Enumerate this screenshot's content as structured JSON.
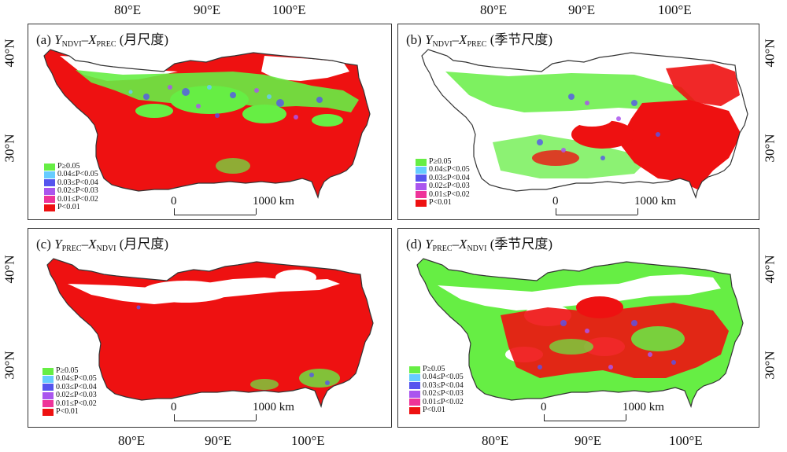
{
  "axes": {
    "lon_ticks": [
      "80°E",
      "90°E",
      "100°E"
    ],
    "lat_ticks": [
      "40°N",
      "30°N"
    ]
  },
  "legend": {
    "items": [
      {
        "label": "P≥0.05",
        "color": "#66ee44"
      },
      {
        "label": "0.04≤P<0.05",
        "color": "#66ccff"
      },
      {
        "label": "0.03≤P<0.04",
        "color": "#5555ee"
      },
      {
        "label": "0.02≤P<0.03",
        "color": "#aa55ee"
      },
      {
        "label": "0.01≤P<0.02",
        "color": "#ee3399"
      },
      {
        "label": "P<0.01",
        "color": "#ee1111"
      }
    ]
  },
  "scale_bar": {
    "start": "0",
    "end": "1000 km"
  },
  "panels": [
    {
      "id": "a",
      "letter": "(a)",
      "y_var": "Y",
      "y_sub": "NDVI",
      "dash": "–",
      "x_var": "X",
      "x_sub": "PREC",
      "scale": "(月尺度)"
    },
    {
      "id": "b",
      "letter": "(b)",
      "y_var": "Y",
      "y_sub": "NDVI",
      "dash": "–",
      "x_var": "X",
      "x_sub": "PREC",
      "scale": "(季节尺度)"
    },
    {
      "id": "c",
      "letter": "(c)",
      "y_var": "Y",
      "y_sub": "PREC",
      "dash": "–",
      "x_var": "X",
      "x_sub": "NDVI",
      "scale": "(月尺度)"
    },
    {
      "id": "d",
      "letter": "(d)",
      "y_var": "Y",
      "y_sub": "PREC",
      "dash": "–",
      "x_var": "X",
      "x_sub": "NDVI",
      "scale": "(季节尺度)"
    }
  ]
}
